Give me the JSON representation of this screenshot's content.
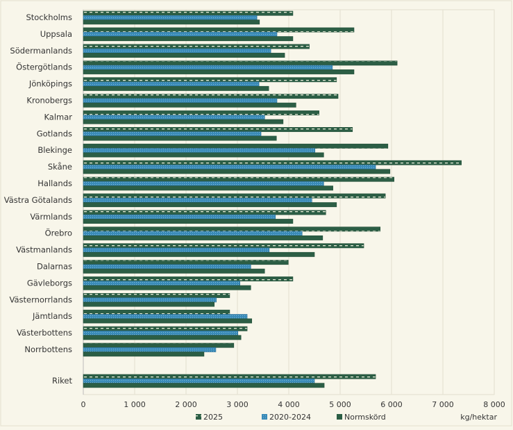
{
  "chart_data": {
    "type": "bar",
    "orientation": "horizontal",
    "categories": [
      "Stockholms",
      "Uppsala",
      "Södermanlands",
      "Östergötlands",
      "Jönköpings",
      "Kronobergs",
      "Kalmar",
      "Gotlands",
      "Blekinge",
      "Skåne",
      "Hallands",
      "Västra Götalands",
      "Värmlands",
      "Örebro",
      "Västmanlands",
      "Dalarnas",
      "Gävleborgs",
      "Västernorrlands",
      "Jämtlands",
      "Västerbottens",
      "Norrbottens",
      "Riket"
    ],
    "series": [
      {
        "name": "2025",
        "color": "#2c5e45",
        "pattern": "dashed-white",
        "values": [
          4080,
          5270,
          4400,
          6110,
          4930,
          4960,
          4590,
          5240,
          5930,
          7360,
          6050,
          5880,
          4720,
          5780,
          5460,
          3990,
          4080,
          2850,
          2850,
          3190,
          2930,
          5690
        ]
      },
      {
        "name": "2020-2024",
        "color": "#3a8bb8",
        "pattern": "dotted",
        "values": [
          3380,
          3770,
          3650,
          4850,
          3420,
          3770,
          3530,
          3460,
          4510,
          5690,
          4680,
          4450,
          3740,
          4260,
          3620,
          3260,
          3050,
          2590,
          3190,
          3010,
          2580,
          4500
        ]
      },
      {
        "name": "Normskörd",
        "color": "#2c5e45",
        "pattern": "solid",
        "values": [
          3430,
          4080,
          3920,
          5270,
          3610,
          4140,
          3890,
          3760,
          4680,
          5970,
          4860,
          4930,
          4080,
          4660,
          4500,
          3530,
          3260,
          2550,
          3280,
          3070,
          2350,
          4690
        ]
      }
    ],
    "xlim": [
      0,
      8000
    ],
    "xticks": [
      0,
      1000,
      2000,
      3000,
      4000,
      5000,
      6000,
      7000,
      8000
    ],
    "xtick_labels": [
      "0",
      "1 000",
      "2 000",
      "3 000",
      "4 000",
      "5 000",
      "6 000",
      "7 000",
      "8 000"
    ],
    "xlabel": "kg/hektar",
    "grid": true,
    "legend": "bottom"
  }
}
